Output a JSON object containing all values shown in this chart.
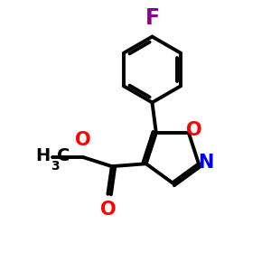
{
  "background_color": "#ffffff",
  "bond_color": "#000000",
  "bond_width": 2.8,
  "atom_colors": {
    "F": "#8B008B",
    "O": "#FF0000",
    "N": "#0000FF",
    "C": "#000000"
  },
  "font_size_atom": 15,
  "font_size_subscript": 10,
  "figsize": [
    3.0,
    3.0
  ],
  "dpi": 100
}
